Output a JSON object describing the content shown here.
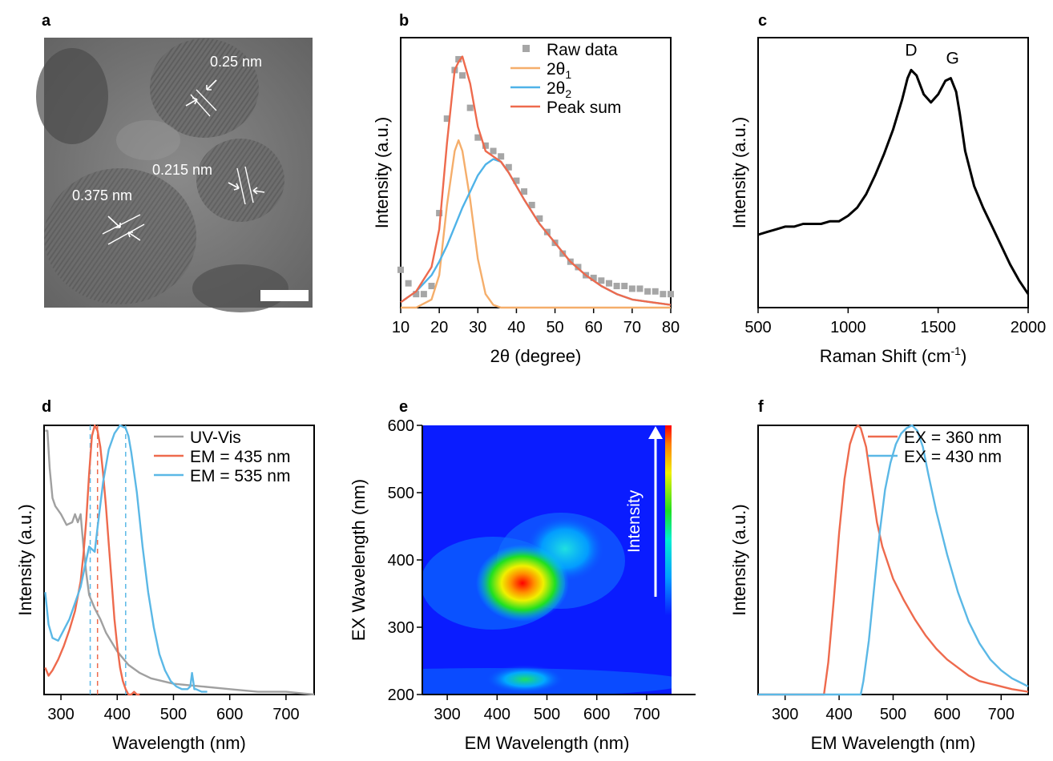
{
  "panels": {
    "a": {
      "label": "a",
      "annotations": [
        "0.25 nm",
        "0.215 nm",
        "0.375 nm"
      ]
    },
    "b": {
      "label": "b"
    },
    "c": {
      "label": "c"
    },
    "d": {
      "label": "d"
    },
    "e": {
      "label": "e",
      "colorbar_label": "Intensity"
    },
    "f": {
      "label": "f"
    }
  },
  "chart_data": [
    {
      "panel": "b",
      "type": "scatter",
      "xlabel": "2θ (degree)",
      "ylabel": "Intensity (a.u.)",
      "xlim": [
        10,
        80
      ],
      "ylim": [
        0,
        1
      ],
      "xticks": [
        10,
        20,
        30,
        40,
        50,
        60,
        70,
        80
      ],
      "legend_position": "top-right",
      "series": [
        {
          "name": "Raw data",
          "kind": "scatter",
          "color": "#a6a6a6",
          "x": [
            10,
            12,
            14,
            16,
            18,
            20,
            22,
            24,
            25,
            26,
            28,
            30,
            32,
            34,
            36,
            38,
            40,
            42,
            44,
            46,
            48,
            50,
            52,
            54,
            56,
            58,
            60,
            62,
            64,
            66,
            68,
            70,
            72,
            74,
            76,
            78,
            80
          ],
          "y": [
            0.14,
            0.09,
            0.05,
            0.05,
            0.08,
            0.35,
            0.7,
            0.88,
            0.92,
            0.86,
            0.74,
            0.63,
            0.6,
            0.58,
            0.56,
            0.52,
            0.47,
            0.43,
            0.38,
            0.33,
            0.28,
            0.24,
            0.2,
            0.17,
            0.15,
            0.12,
            0.11,
            0.1,
            0.09,
            0.08,
            0.08,
            0.07,
            0.07,
            0.06,
            0.06,
            0.05,
            0.05
          ]
        },
        {
          "name": "2θ",
          "sub": "1",
          "kind": "line",
          "color": "#f5ae6b",
          "x": [
            10,
            14,
            18,
            20,
            22,
            24,
            25,
            26,
            28,
            30,
            32,
            34,
            36,
            40,
            50,
            60,
            70,
            80
          ],
          "y": [
            0.0,
            0.0,
            0.03,
            0.12,
            0.38,
            0.58,
            0.62,
            0.58,
            0.4,
            0.18,
            0.05,
            0.01,
            0.0,
            0.0,
            0.0,
            0.0,
            0.0,
            0.0
          ]
        },
        {
          "name": "2θ",
          "sub": "2",
          "kind": "line",
          "color": "#4fb3e8",
          "x": [
            10,
            14,
            18,
            20,
            22,
            24,
            26,
            28,
            30,
            32,
            34,
            36,
            38,
            40,
            42,
            46,
            50,
            54,
            58,
            62,
            66,
            70,
            75,
            80
          ],
          "y": [
            0.02,
            0.06,
            0.12,
            0.17,
            0.23,
            0.3,
            0.37,
            0.43,
            0.49,
            0.53,
            0.55,
            0.54,
            0.5,
            0.45,
            0.4,
            0.31,
            0.24,
            0.17,
            0.12,
            0.08,
            0.05,
            0.03,
            0.02,
            0.01
          ]
        },
        {
          "name": "Peak sum",
          "kind": "line",
          "color": "#ee6a4d",
          "x": [
            10,
            14,
            18,
            20,
            22,
            24,
            25,
            26,
            28,
            30,
            32,
            34,
            36,
            38,
            40,
            42,
            46,
            50,
            54,
            58,
            62,
            66,
            70,
            75,
            80
          ],
          "y": [
            0.02,
            0.06,
            0.15,
            0.29,
            0.61,
            0.88,
            0.91,
            0.93,
            0.83,
            0.67,
            0.58,
            0.56,
            0.54,
            0.5,
            0.45,
            0.4,
            0.31,
            0.24,
            0.17,
            0.12,
            0.08,
            0.05,
            0.03,
            0.02,
            0.01
          ]
        }
      ]
    },
    {
      "panel": "c",
      "type": "line",
      "xlabel": "Raman Shift (cm",
      "xlabel_sup": "-1",
      "xlabel_tail": ")",
      "ylabel": "Intensity (a.u.)",
      "xlim": [
        500,
        2000
      ],
      "ylim": [
        0,
        1
      ],
      "xticks": [
        500,
        1000,
        1500,
        2000
      ],
      "annotations": [
        {
          "text": "D",
          "x": 1350
        },
        {
          "text": "G",
          "x": 1580
        }
      ],
      "series": [
        {
          "name": "Raman",
          "color": "#000000",
          "x": [
            500,
            550,
            600,
            650,
            700,
            750,
            800,
            850,
            900,
            950,
            1000,
            1050,
            1100,
            1150,
            1200,
            1250,
            1300,
            1330,
            1350,
            1380,
            1420,
            1460,
            1500,
            1540,
            1570,
            1600,
            1620,
            1650,
            1700,
            1750,
            1800,
            1850,
            1900,
            1950,
            2000
          ],
          "y": [
            0.27,
            0.28,
            0.29,
            0.3,
            0.3,
            0.31,
            0.31,
            0.31,
            0.32,
            0.32,
            0.34,
            0.37,
            0.42,
            0.49,
            0.57,
            0.66,
            0.77,
            0.85,
            0.88,
            0.86,
            0.79,
            0.76,
            0.79,
            0.84,
            0.85,
            0.8,
            0.72,
            0.58,
            0.45,
            0.37,
            0.3,
            0.23,
            0.16,
            0.1,
            0.05
          ]
        }
      ]
    },
    {
      "panel": "d",
      "type": "line",
      "xlabel": "Wavelength (nm)",
      "ylabel": "Intensity (a.u.)",
      "xlim": [
        270,
        750
      ],
      "ylim": [
        0,
        1
      ],
      "xticks": [
        300,
        400,
        500,
        600,
        700
      ],
      "legend_position": "top-right",
      "vlines": [
        {
          "x": 352,
          "color": "#5bb8e6"
        },
        {
          "x": 365,
          "color": "#ee6a4d"
        },
        {
          "x": 415,
          "color": "#5bb8e6"
        }
      ],
      "series": [
        {
          "name": "UV-Vis",
          "color": "#a0a0a0",
          "x": [
            272,
            276,
            280,
            285,
            290,
            300,
            310,
            320,
            325,
            330,
            335,
            340,
            345,
            350,
            360,
            370,
            380,
            400,
            420,
            440,
            460,
            480,
            500,
            550,
            600,
            650,
            700,
            750
          ],
          "y": [
            0.98,
            0.98,
            0.84,
            0.73,
            0.7,
            0.67,
            0.63,
            0.64,
            0.67,
            0.64,
            0.67,
            0.55,
            0.45,
            0.37,
            0.32,
            0.28,
            0.23,
            0.16,
            0.11,
            0.08,
            0.06,
            0.05,
            0.04,
            0.03,
            0.02,
            0.01,
            0.01,
            0.0
          ]
        },
        {
          "name": "EM = 435 nm",
          "color": "#ee6a4d",
          "x": [
            272,
            278,
            285,
            295,
            305,
            315,
            325,
            335,
            340,
            345,
            350,
            355,
            360,
            365,
            370,
            375,
            380,
            385,
            390,
            395,
            400,
            405,
            410,
            415,
            420,
            425,
            430,
            435,
            440
          ],
          "y": [
            0.1,
            0.07,
            0.09,
            0.13,
            0.18,
            0.24,
            0.31,
            0.42,
            0.52,
            0.65,
            0.82,
            0.96,
            1.0,
            0.98,
            0.92,
            0.82,
            0.7,
            0.56,
            0.42,
            0.28,
            0.18,
            0.1,
            0.05,
            0.02,
            0.0,
            0.0,
            0.01,
            0.0,
            0.0
          ]
        },
        {
          "name": "EM = 535 nm",
          "color": "#5bb8e6",
          "x": [
            272,
            278,
            285,
            295,
            305,
            315,
            325,
            335,
            345,
            350,
            355,
            360,
            365,
            375,
            385,
            395,
            405,
            415,
            420,
            425,
            435,
            445,
            455,
            465,
            475,
            485,
            495,
            505,
            515,
            525,
            530,
            533,
            535,
            537,
            540,
            550,
            560
          ],
          "y": [
            0.38,
            0.26,
            0.21,
            0.2,
            0.24,
            0.28,
            0.34,
            0.4,
            0.5,
            0.55,
            0.54,
            0.53,
            0.62,
            0.79,
            0.91,
            0.97,
            1.0,
            0.99,
            0.96,
            0.9,
            0.75,
            0.55,
            0.38,
            0.25,
            0.15,
            0.09,
            0.05,
            0.03,
            0.02,
            0.02,
            0.03,
            0.08,
            0.05,
            0.02,
            0.02,
            0.01,
            0.01
          ]
        }
      ]
    },
    {
      "panel": "e",
      "type": "heatmap",
      "xlabel": "EM Wavelength (nm)",
      "ylabel": "EX Wavelength (nm)",
      "xlim": [
        250,
        750
      ],
      "ylim": [
        200,
        600
      ],
      "xticks": [
        300,
        400,
        500,
        600,
        700
      ],
      "yticks": [
        200,
        300,
        400,
        500,
        600
      ],
      "peaks": [
        {
          "x": 435,
          "y": 360,
          "intensity": 1.0
        },
        {
          "x": 530,
          "y": 410,
          "intensity": 0.45
        },
        {
          "x": 430,
          "y": 260,
          "intensity": 0.35
        }
      ]
    },
    {
      "panel": "f",
      "type": "line",
      "xlabel": "EM Wavelength (nm)",
      "ylabel": "Intensity (a.u.)",
      "xlim": [
        250,
        750
      ],
      "ylim": [
        0,
        1
      ],
      "xticks": [
        300,
        400,
        500,
        600,
        700
      ],
      "legend_position": "top-right",
      "series": [
        {
          "name": "EX = 360 nm",
          "color": "#ee6a4d",
          "x": [
            250,
            300,
            360,
            372,
            380,
            390,
            400,
            410,
            420,
            430,
            435,
            440,
            450,
            460,
            470,
            480,
            500,
            520,
            540,
            560,
            580,
            600,
            620,
            640,
            660,
            680,
            700,
            720,
            750
          ],
          "y": [
            0,
            0,
            0,
            0.0,
            0.12,
            0.35,
            0.6,
            0.8,
            0.93,
            0.99,
            1.0,
            0.99,
            0.92,
            0.78,
            0.64,
            0.55,
            0.43,
            0.35,
            0.28,
            0.22,
            0.17,
            0.13,
            0.1,
            0.07,
            0.05,
            0.04,
            0.03,
            0.02,
            0.01
          ]
        },
        {
          "name": "EX = 430 nm",
          "color": "#5bb8e6",
          "x": [
            250,
            300,
            400,
            440,
            445,
            455,
            465,
            475,
            485,
            495,
            505,
            515,
            525,
            535,
            545,
            555,
            565,
            580,
            600,
            620,
            640,
            660,
            680,
            700,
            720,
            750
          ],
          "y": [
            0,
            0,
            0,
            0.0,
            0.05,
            0.2,
            0.4,
            0.6,
            0.76,
            0.86,
            0.93,
            0.97,
            0.99,
            1.0,
            0.98,
            0.92,
            0.82,
            0.68,
            0.52,
            0.38,
            0.27,
            0.19,
            0.13,
            0.09,
            0.06,
            0.03
          ]
        }
      ]
    }
  ]
}
